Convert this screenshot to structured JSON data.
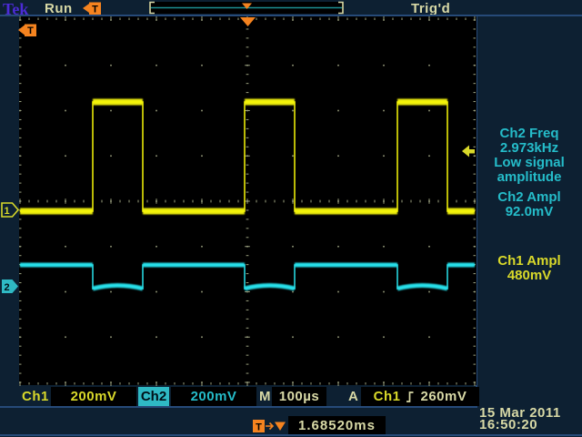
{
  "header": {
    "logo": "Tek",
    "acq_state": "Run",
    "trig_state": "Trig'd"
  },
  "markers": {
    "trig": "T",
    "ch1": "1",
    "ch2": "2"
  },
  "measurements": {
    "ch2_freq_label": "Ch2 Freq",
    "ch2_freq_value": "2.973kHz",
    "warning_line1": "Low signal",
    "warning_line2": "amplitude",
    "ch2_ampl_label": "Ch2 Ampl",
    "ch2_ampl_value": "92.0mV",
    "ch1_ampl_label": "Ch1 Ampl",
    "ch1_ampl_value": "480mV"
  },
  "statusbar": {
    "ch1": "Ch1",
    "ch1_scale": "200mV",
    "ch2": "Ch2",
    "ch2_scale": "200mV",
    "m": "M",
    "timebase": "100µs",
    "a": "A",
    "trig_source": "Ch1",
    "trig_level": "260mV"
  },
  "footer": {
    "delay": "1.68520ms",
    "date": "15 Mar 2011",
    "time": "16:50:20"
  },
  "colors": {
    "background": "#0d2032",
    "display": "#000000",
    "separator": "#264a78",
    "tan_text": "#d8d9a6",
    "purple_logo": "#4c2bd6",
    "orange_marker": "#f5831f",
    "ch1_yellow": "#f8f808",
    "ch2_cyan": "#28e2ec",
    "cyan_text": "#25bcc9",
    "graticule_dots": "#9aa07e",
    "record_line": "#1d8f92"
  },
  "chart_data": {
    "type": "line",
    "title": "",
    "timebase": "100µs/div",
    "trigger": {
      "source": "Ch1",
      "level": "260mV",
      "slope": "rising",
      "delay": "1.68520ms"
    },
    "graticule": {
      "x0": 22,
      "y0": 22,
      "x1": 522,
      "y1": 420,
      "xdivs": 10,
      "ydivs": 8
    },
    "series": [
      {
        "name": "Ch1",
        "color": "#f8f808",
        "volts_per_div": "200mV",
        "shape": "square-pulse",
        "measured_amplitude": "480mV",
        "px": {
          "base_y": 232,
          "pulse_y": 112,
          "pulse_starts": [
            102,
            269,
            437
          ],
          "pulse_ends": [
            157,
            324,
            492
          ],
          "band": 7,
          "dip_curve": 0
        }
      },
      {
        "name": "Ch2",
        "color": "#28e2ec",
        "volts_per_div": "200mV",
        "shape": "inverted-pulse",
        "measured_amplitude": "92.0mV",
        "measured_frequency": "2.973kHz",
        "px": {
          "base_y": 291,
          "pulse_y": 317,
          "pulse_starts": [
            102,
            269,
            437
          ],
          "pulse_ends": [
            157,
            324,
            492
          ],
          "band": 5,
          "dip_curve": 7
        }
      }
    ],
    "marker_px": {
      "ch1_ground_y": 230,
      "ch2_ground_y": 314,
      "trig_level_y": 166,
      "trig_pos_x": 272
    }
  }
}
